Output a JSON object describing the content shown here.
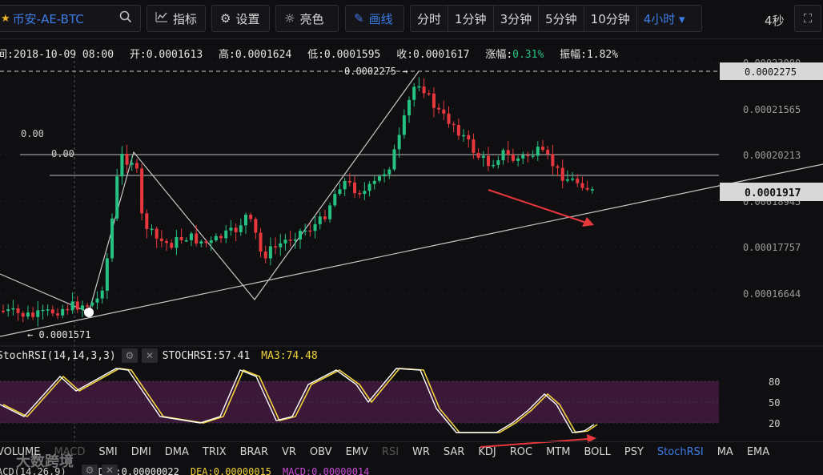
{
  "toolbar": {
    "symbol": "币安-AE-BTC",
    "indicators_label": "指标",
    "settings_label": "设置",
    "brightness_label": "亮色",
    "draw_label": "画线",
    "periods": [
      "分时",
      "1分钟",
      "3分钟",
      "5分钟",
      "10分钟",
      "4小时 ▾"
    ],
    "refresh_interval": "4秒",
    "colors": {
      "accent": "#3d7de8",
      "star": "#f0b429"
    }
  },
  "info": {
    "time_label": "间:2018-10-09 08:00",
    "open": "开:0.0001613",
    "high": "高:0.0001624",
    "low": "低:0.0001595",
    "close": "收:0.0001617",
    "change_label": "涨幅:",
    "change_value": "0.31%",
    "amplitude": "振幅:1.82%"
  },
  "chart_data": {
    "type": "candlestick",
    "price_axis_ticks": [
      "0.00023000",
      "0.00021565",
      "0.00020213",
      "0.00018945",
      "0.00017757",
      "0.00016644"
    ],
    "y_range": [
      0.0001571,
      0.00023
    ],
    "current_price_label": "0.0001917",
    "high_marker_label": "0.0002275",
    "high_marker_callout": "0.0002275 →",
    "low_marker_callout": "← 0.0001571",
    "fib_labels": [
      "0.00",
      "0.00"
    ],
    "horizontal_levels": [
      0.0002035,
      0.000197
    ],
    "candle_count": 120,
    "stoch_rsi": {
      "name": "StochRSI(14,14,3,3)",
      "stochrsi_label": "STOCHRSI:57.41",
      "ma3_label": "MA3:74.48",
      "axis_ticks": [
        "80",
        "50",
        "20"
      ],
      "colors": {
        "k": "#ffffff",
        "d": "#f0d23c",
        "band": "#3b1838"
      }
    },
    "colors": {
      "up": "#26c281",
      "down": "#e8383d",
      "arrow": "#e8383d",
      "trendline": "#c8c8c8"
    }
  },
  "indicator_tabs": [
    "VOLUME",
    "MACD",
    "SMI",
    "DMI",
    "DMA",
    "TRIX",
    "BRAR",
    "VR",
    "OBV",
    "EMV",
    "RSI",
    "WR",
    "SAR",
    "KDJ",
    "ROC",
    "MTM",
    "BOLL",
    "PSY",
    "StochRSI",
    "MA",
    "EMA"
  ],
  "macd": {
    "params": "ACD(14,26,9)",
    "dif": "DIF:0.00000022",
    "dea": "DEA:0.00000015",
    "macd": "MACD:0.00000014"
  },
  "watermark": "大数跨境"
}
